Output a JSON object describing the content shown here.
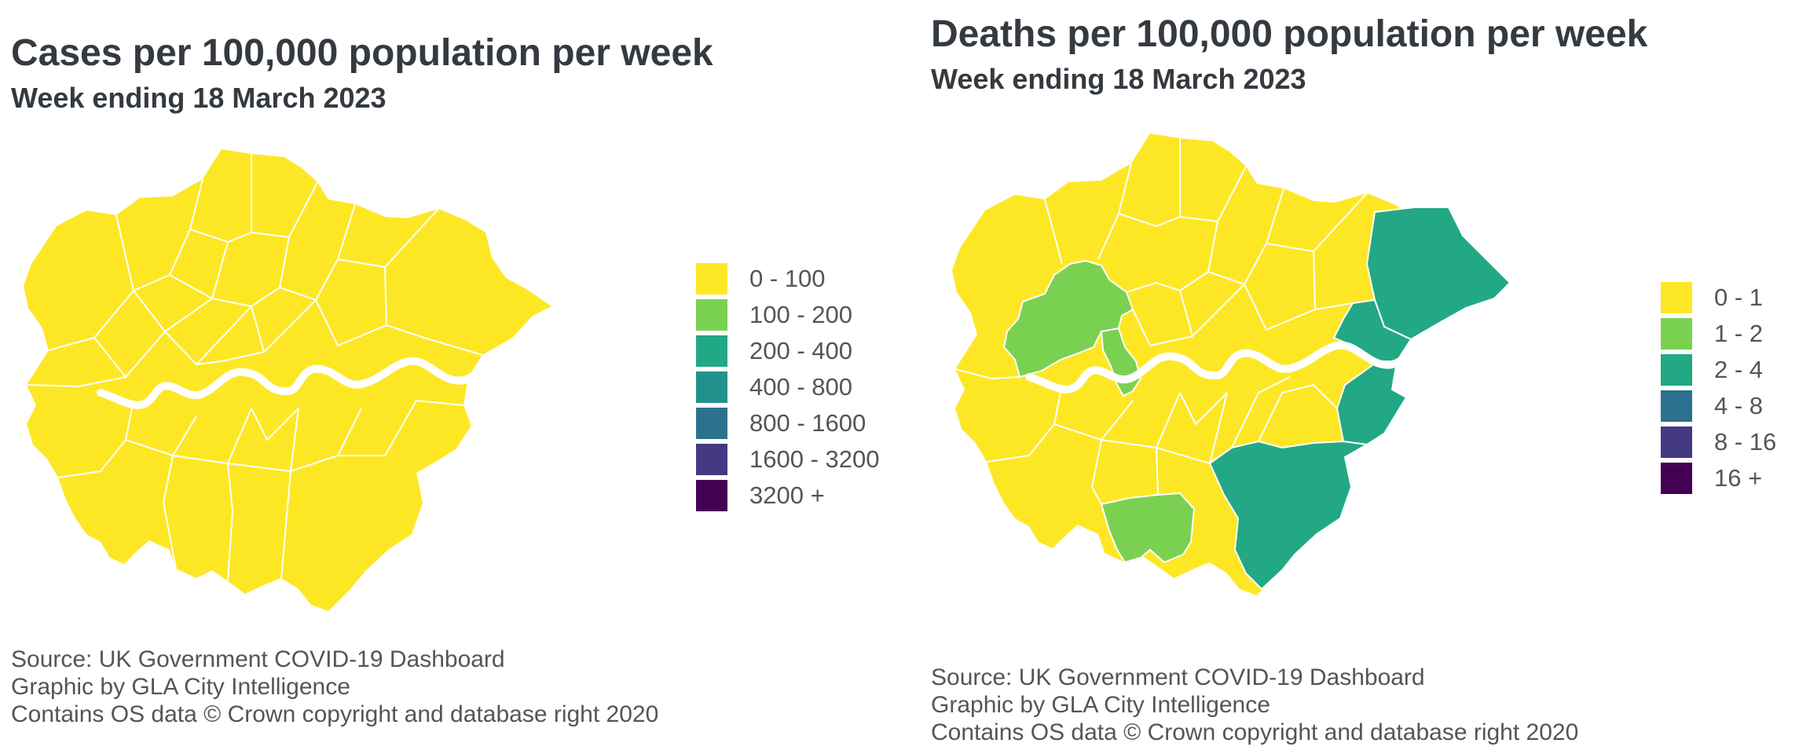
{
  "cases": {
    "title": "Cases per 100,000 population per week",
    "subtitle": "Week ending 18 March 2023",
    "legend": [
      {
        "label": "0 - 100",
        "color": "#fde725"
      },
      {
        "label": "100 - 200",
        "color": "#7ad151"
      },
      {
        "label": "200 - 400",
        "color": "#22a884"
      },
      {
        "label": "400 - 800",
        "color": "#21918c"
      },
      {
        "label": "800 - 1600",
        "color": "#2c728e"
      },
      {
        "label": "1600 - 3200",
        "color": "#443983"
      },
      {
        "label": "3200 +",
        "color": "#440154"
      }
    ],
    "source": [
      "Source: UK Government COVID-19 Dashboard",
      "Graphic by GLA City Intelligence",
      "Contains OS data © Crown copyright and database right 2020"
    ]
  },
  "deaths": {
    "title": "Deaths per 100,000 population per week",
    "subtitle": "Week ending 18 March 2023",
    "legend": [
      {
        "label": "0 - 1",
        "color": "#fde725"
      },
      {
        "label": "1 - 2",
        "color": "#7ad151"
      },
      {
        "label": "2 - 4",
        "color": "#22a884"
      },
      {
        "label": "4 - 8",
        "color": "#2c728e"
      },
      {
        "label": "8 - 16",
        "color": "#443983"
      },
      {
        "label": "16 +",
        "color": "#440154"
      }
    ],
    "source": [
      "Source: UK Government COVID-19 Dashboard",
      "Graphic by GLA City Intelligence",
      "Contains OS data © Crown copyright and database right 2020"
    ]
  },
  "river_color": "#ffffff",
  "border_color": "#ffffff"
}
